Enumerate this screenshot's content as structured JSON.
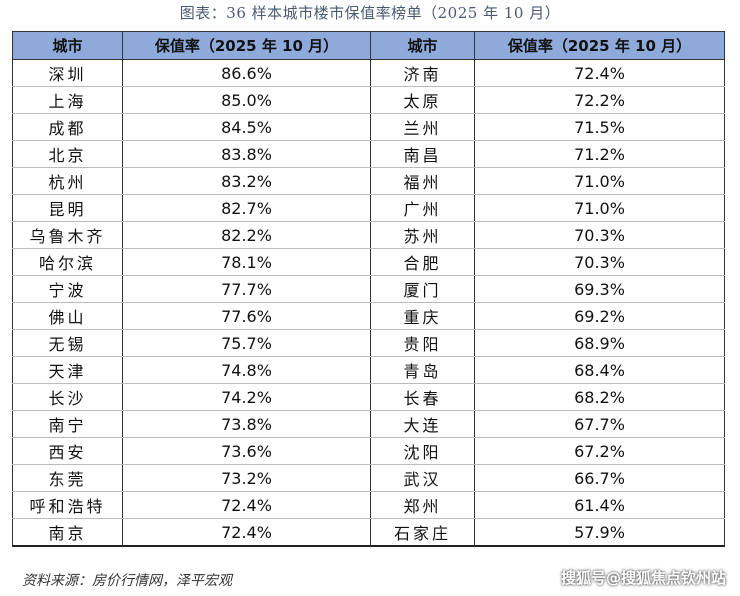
{
  "caption": "图表：36 样本城市楼市保值率榜单（2025 年 10 月）",
  "table": {
    "headers": [
      "城市",
      "保值率（2025 年 10 月）",
      "城市",
      "保值率（2025 年 10 月）"
    ],
    "rows": [
      [
        "深圳",
        "86.6%",
        "济南",
        "72.4%"
      ],
      [
        "上海",
        "85.0%",
        "太原",
        "72.2%"
      ],
      [
        "成都",
        "84.5%",
        "兰州",
        "71.5%"
      ],
      [
        "北京",
        "83.8%",
        "南昌",
        "71.2%"
      ],
      [
        "杭州",
        "83.2%",
        "福州",
        "71.0%"
      ],
      [
        "昆明",
        "82.7%",
        "广州",
        "71.0%"
      ],
      [
        "乌鲁木齐",
        "82.2%",
        "苏州",
        "70.3%"
      ],
      [
        "哈尔滨",
        "78.1%",
        "合肥",
        "70.3%"
      ],
      [
        "宁波",
        "77.7%",
        "厦门",
        "69.3%"
      ],
      [
        "佛山",
        "77.6%",
        "重庆",
        "69.2%"
      ],
      [
        "无锡",
        "75.7%",
        "贵阳",
        "68.9%"
      ],
      [
        "天津",
        "74.8%",
        "青岛",
        "68.4%"
      ],
      [
        "长沙",
        "74.2%",
        "长春",
        "68.2%"
      ],
      [
        "南宁",
        "73.8%",
        "大连",
        "67.7%"
      ],
      [
        "西安",
        "73.6%",
        "沈阳",
        "67.2%"
      ],
      [
        "东莞",
        "73.2%",
        "武汉",
        "66.7%"
      ],
      [
        "呼和浩特",
        "72.4%",
        "郑州",
        "61.4%"
      ],
      [
        "南京",
        "72.4%",
        "石家庄",
        "57.9%"
      ]
    ]
  },
  "source": "资料来源：房价行情网，泽平宏观",
  "watermark": "搜狐号@搜狐焦点钦州站",
  "colors": {
    "header_bg": "#8eaadb"
  }
}
